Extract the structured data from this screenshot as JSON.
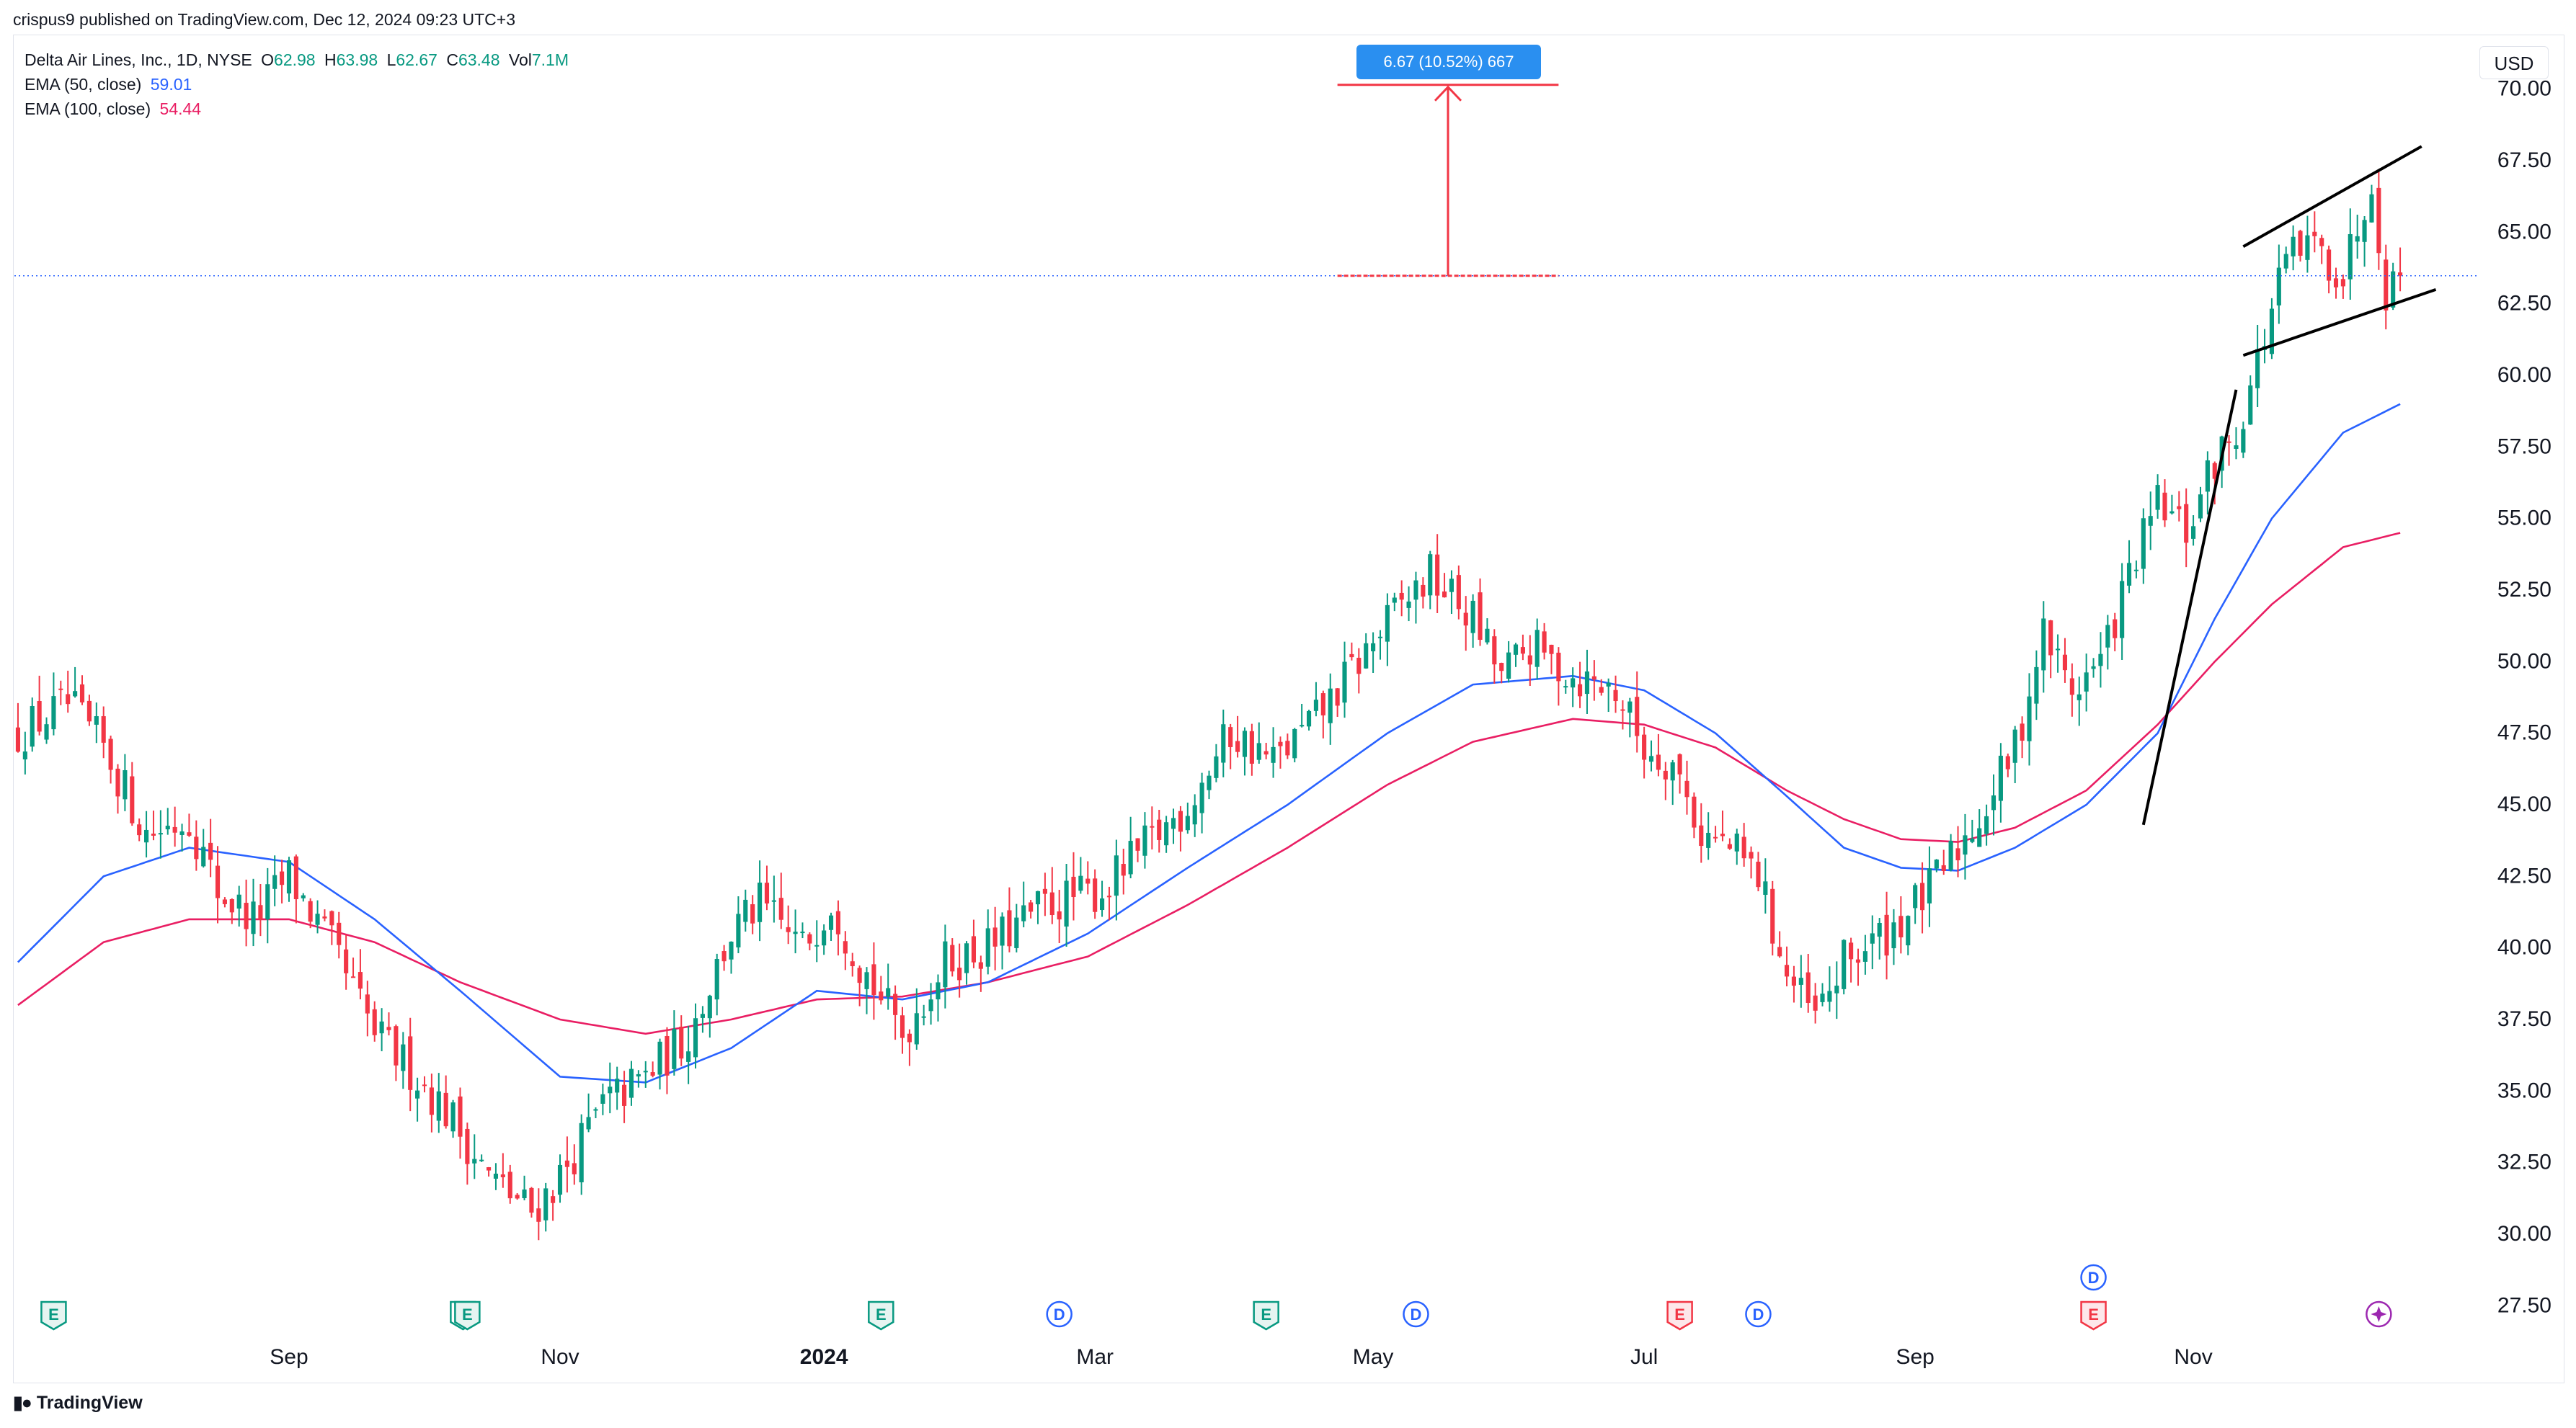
{
  "header": {
    "publish_line": "crispus9 published on TradingView.com, Dec 12, 2024 09:23 UTC+3"
  },
  "legend": {
    "symbol": "Delta Air Lines, Inc., 1D, NYSE",
    "o_label": "O",
    "o_value": "62.98",
    "h_label": "H",
    "h_value": "63.98",
    "l_label": "L",
    "l_value": "62.67",
    "c_label": "C",
    "c_value": "63.48",
    "vol_label": "Vol",
    "vol_value": "7.1M",
    "ema50_label": "EMA (50, close)",
    "ema50_value": "59.01",
    "ema100_label": "EMA (100, close)",
    "ema100_value": "54.44"
  },
  "currency": "USD",
  "measure_label": "6.67 (10.52%) 667",
  "footer": {
    "brand": "TradingView"
  },
  "colors": {
    "up": "#089981",
    "down": "#f23645",
    "ema50": "#2962ff",
    "ema100": "#e91e63",
    "price_line": "#2962ff",
    "measure": "#f23645",
    "annotation": "#000000"
  },
  "chart_data": {
    "type": "candlestick",
    "ylim": [
      26.5,
      71.0
    ],
    "y_ticks": [
      "27.50",
      "30.00",
      "32.50",
      "35.00",
      "37.50",
      "40.00",
      "42.50",
      "45.00",
      "47.50",
      "50.00",
      "52.50",
      "55.00",
      "57.50",
      "60.00",
      "62.50",
      "65.00",
      "67.50",
      "70.00"
    ],
    "x_labels": [
      "Sep",
      "Nov",
      "2024",
      "Mar",
      "May",
      "Jul",
      "Sep",
      "Nov"
    ],
    "x_label_index": [
      38,
      76,
      113,
      151,
      190,
      228,
      266,
      305
    ],
    "bar_count": 335,
    "current_price": 63.48,
    "close_anchors": [
      [
        0,
        47.5
      ],
      [
        7,
        48.5
      ],
      [
        12,
        47
      ],
      [
        18,
        44
      ],
      [
        24,
        44.5
      ],
      [
        28,
        42
      ],
      [
        33,
        41
      ],
      [
        38,
        42.5
      ],
      [
        44,
        40
      ],
      [
        50,
        37
      ],
      [
        56,
        35.5
      ],
      [
        61,
        34
      ],
      [
        66,
        32
      ],
      [
        72,
        30.8
      ],
      [
        76,
        32
      ],
      [
        82,
        34.5
      ],
      [
        88,
        35.5
      ],
      [
        94,
        37
      ],
      [
        100,
        40.5
      ],
      [
        104,
        41.5
      ],
      [
        110,
        40
      ],
      [
        114,
        41.7
      ],
      [
        118,
        39.5
      ],
      [
        124,
        37
      ],
      [
        130,
        39.5
      ],
      [
        136,
        40
      ],
      [
        144,
        41.5
      ],
      [
        152,
        42
      ],
      [
        158,
        43.5
      ],
      [
        164,
        45
      ],
      [
        170,
        47.5
      ],
      [
        176,
        46.5
      ],
      [
        182,
        48
      ],
      [
        188,
        50
      ],
      [
        194,
        52
      ],
      [
        198,
        53
      ],
      [
        204,
        51.5
      ],
      [
        208,
        49.5
      ],
      [
        212,
        50.5
      ],
      [
        218,
        49.5
      ],
      [
        224,
        49
      ],
      [
        228,
        47
      ],
      [
        232,
        46.5
      ],
      [
        236,
        44
      ],
      [
        240,
        43.5
      ],
      [
        244,
        42.5
      ],
      [
        248,
        39
      ],
      [
        252,
        37.5
      ],
      [
        256,
        39.5
      ],
      [
        262,
        40.5
      ],
      [
        268,
        42
      ],
      [
        272,
        43.5
      ],
      [
        276,
        45
      ],
      [
        280,
        47
      ],
      [
        284,
        51
      ],
      [
        288,
        49
      ],
      [
        292,
        50
      ],
      [
        296,
        53
      ],
      [
        300,
        55.5
      ],
      [
        304,
        54.5
      ],
      [
        308,
        57
      ],
      [
        311,
        58
      ],
      [
        314,
        60.5
      ],
      [
        318,
        64
      ],
      [
        322,
        64.5
      ],
      [
        326,
        63.5
      ],
      [
        330,
        67
      ],
      [
        332,
        63
      ],
      [
        334,
        63.5
      ]
    ],
    "ema50_anchors": [
      [
        0,
        39.5
      ],
      [
        12,
        42.5
      ],
      [
        24,
        43.5
      ],
      [
        38,
        43
      ],
      [
        50,
        41
      ],
      [
        62,
        38.5
      ],
      [
        76,
        35.5
      ],
      [
        88,
        35.3
      ],
      [
        100,
        36.5
      ],
      [
        112,
        38.5
      ],
      [
        124,
        38.2
      ],
      [
        136,
        38.8
      ],
      [
        150,
        40.5
      ],
      [
        164,
        42.8
      ],
      [
        178,
        45
      ],
      [
        192,
        47.5
      ],
      [
        204,
        49.2
      ],
      [
        218,
        49.5
      ],
      [
        228,
        49
      ],
      [
        238,
        47.5
      ],
      [
        248,
        45.3
      ],
      [
        256,
        43.5
      ],
      [
        264,
        42.8
      ],
      [
        272,
        42.7
      ],
      [
        280,
        43.5
      ],
      [
        290,
        45
      ],
      [
        300,
        47.5
      ],
      [
        308,
        51.5
      ],
      [
        316,
        55
      ],
      [
        326,
        58
      ],
      [
        334,
        59
      ]
    ],
    "ema100_anchors": [
      [
        0,
        38
      ],
      [
        12,
        40.2
      ],
      [
        24,
        41
      ],
      [
        38,
        41
      ],
      [
        50,
        40.2
      ],
      [
        62,
        38.8
      ],
      [
        76,
        37.5
      ],
      [
        88,
        37
      ],
      [
        100,
        37.5
      ],
      [
        112,
        38.2
      ],
      [
        124,
        38.3
      ],
      [
        136,
        38.8
      ],
      [
        150,
        39.7
      ],
      [
        164,
        41.5
      ],
      [
        178,
        43.5
      ],
      [
        192,
        45.7
      ],
      [
        204,
        47.2
      ],
      [
        218,
        48
      ],
      [
        228,
        47.8
      ],
      [
        238,
        47
      ],
      [
        248,
        45.5
      ],
      [
        256,
        44.5
      ],
      [
        264,
        43.8
      ],
      [
        272,
        43.7
      ],
      [
        280,
        44.2
      ],
      [
        290,
        45.5
      ],
      [
        300,
        47.8
      ],
      [
        308,
        50
      ],
      [
        316,
        52
      ],
      [
        326,
        54
      ],
      [
        334,
        54.5
      ]
    ],
    "measure": {
      "from_price": 63.48,
      "to_price": 70.15,
      "x_start_index": 185,
      "x_end_index": 216
    },
    "flagpole": {
      "from": [
        298,
        44.3
      ],
      "to": [
        311,
        59.5
      ]
    },
    "channel_upper": {
      "from": [
        312,
        64.5
      ],
      "to": [
        337,
        68.0
      ]
    },
    "channel_lower": {
      "from": [
        312,
        60.7
      ],
      "to": [
        339,
        63.0
      ]
    },
    "event_markers": [
      {
        "idx": 5,
        "type": "E",
        "color": "#089981"
      },
      {
        "idx": 63,
        "type": "E",
        "color": "#089981",
        "double": true
      },
      {
        "idx": 121,
        "type": "E",
        "color": "#089981"
      },
      {
        "idx": 146,
        "type": "D",
        "color": "#2962ff"
      },
      {
        "idx": 175,
        "type": "E",
        "color": "#089981"
      },
      {
        "idx": 196,
        "type": "D",
        "color": "#2962ff"
      },
      {
        "idx": 233,
        "type": "E",
        "color": "#f23645"
      },
      {
        "idx": 244,
        "type": "D",
        "color": "#2962ff"
      },
      {
        "idx": 291,
        "type": "E",
        "color": "#f23645"
      },
      {
        "idx": 291,
        "type": "D",
        "color": "#2962ff",
        "raised": true
      },
      {
        "idx": 331,
        "type": "+",
        "color": "#9c27b0"
      }
    ]
  }
}
